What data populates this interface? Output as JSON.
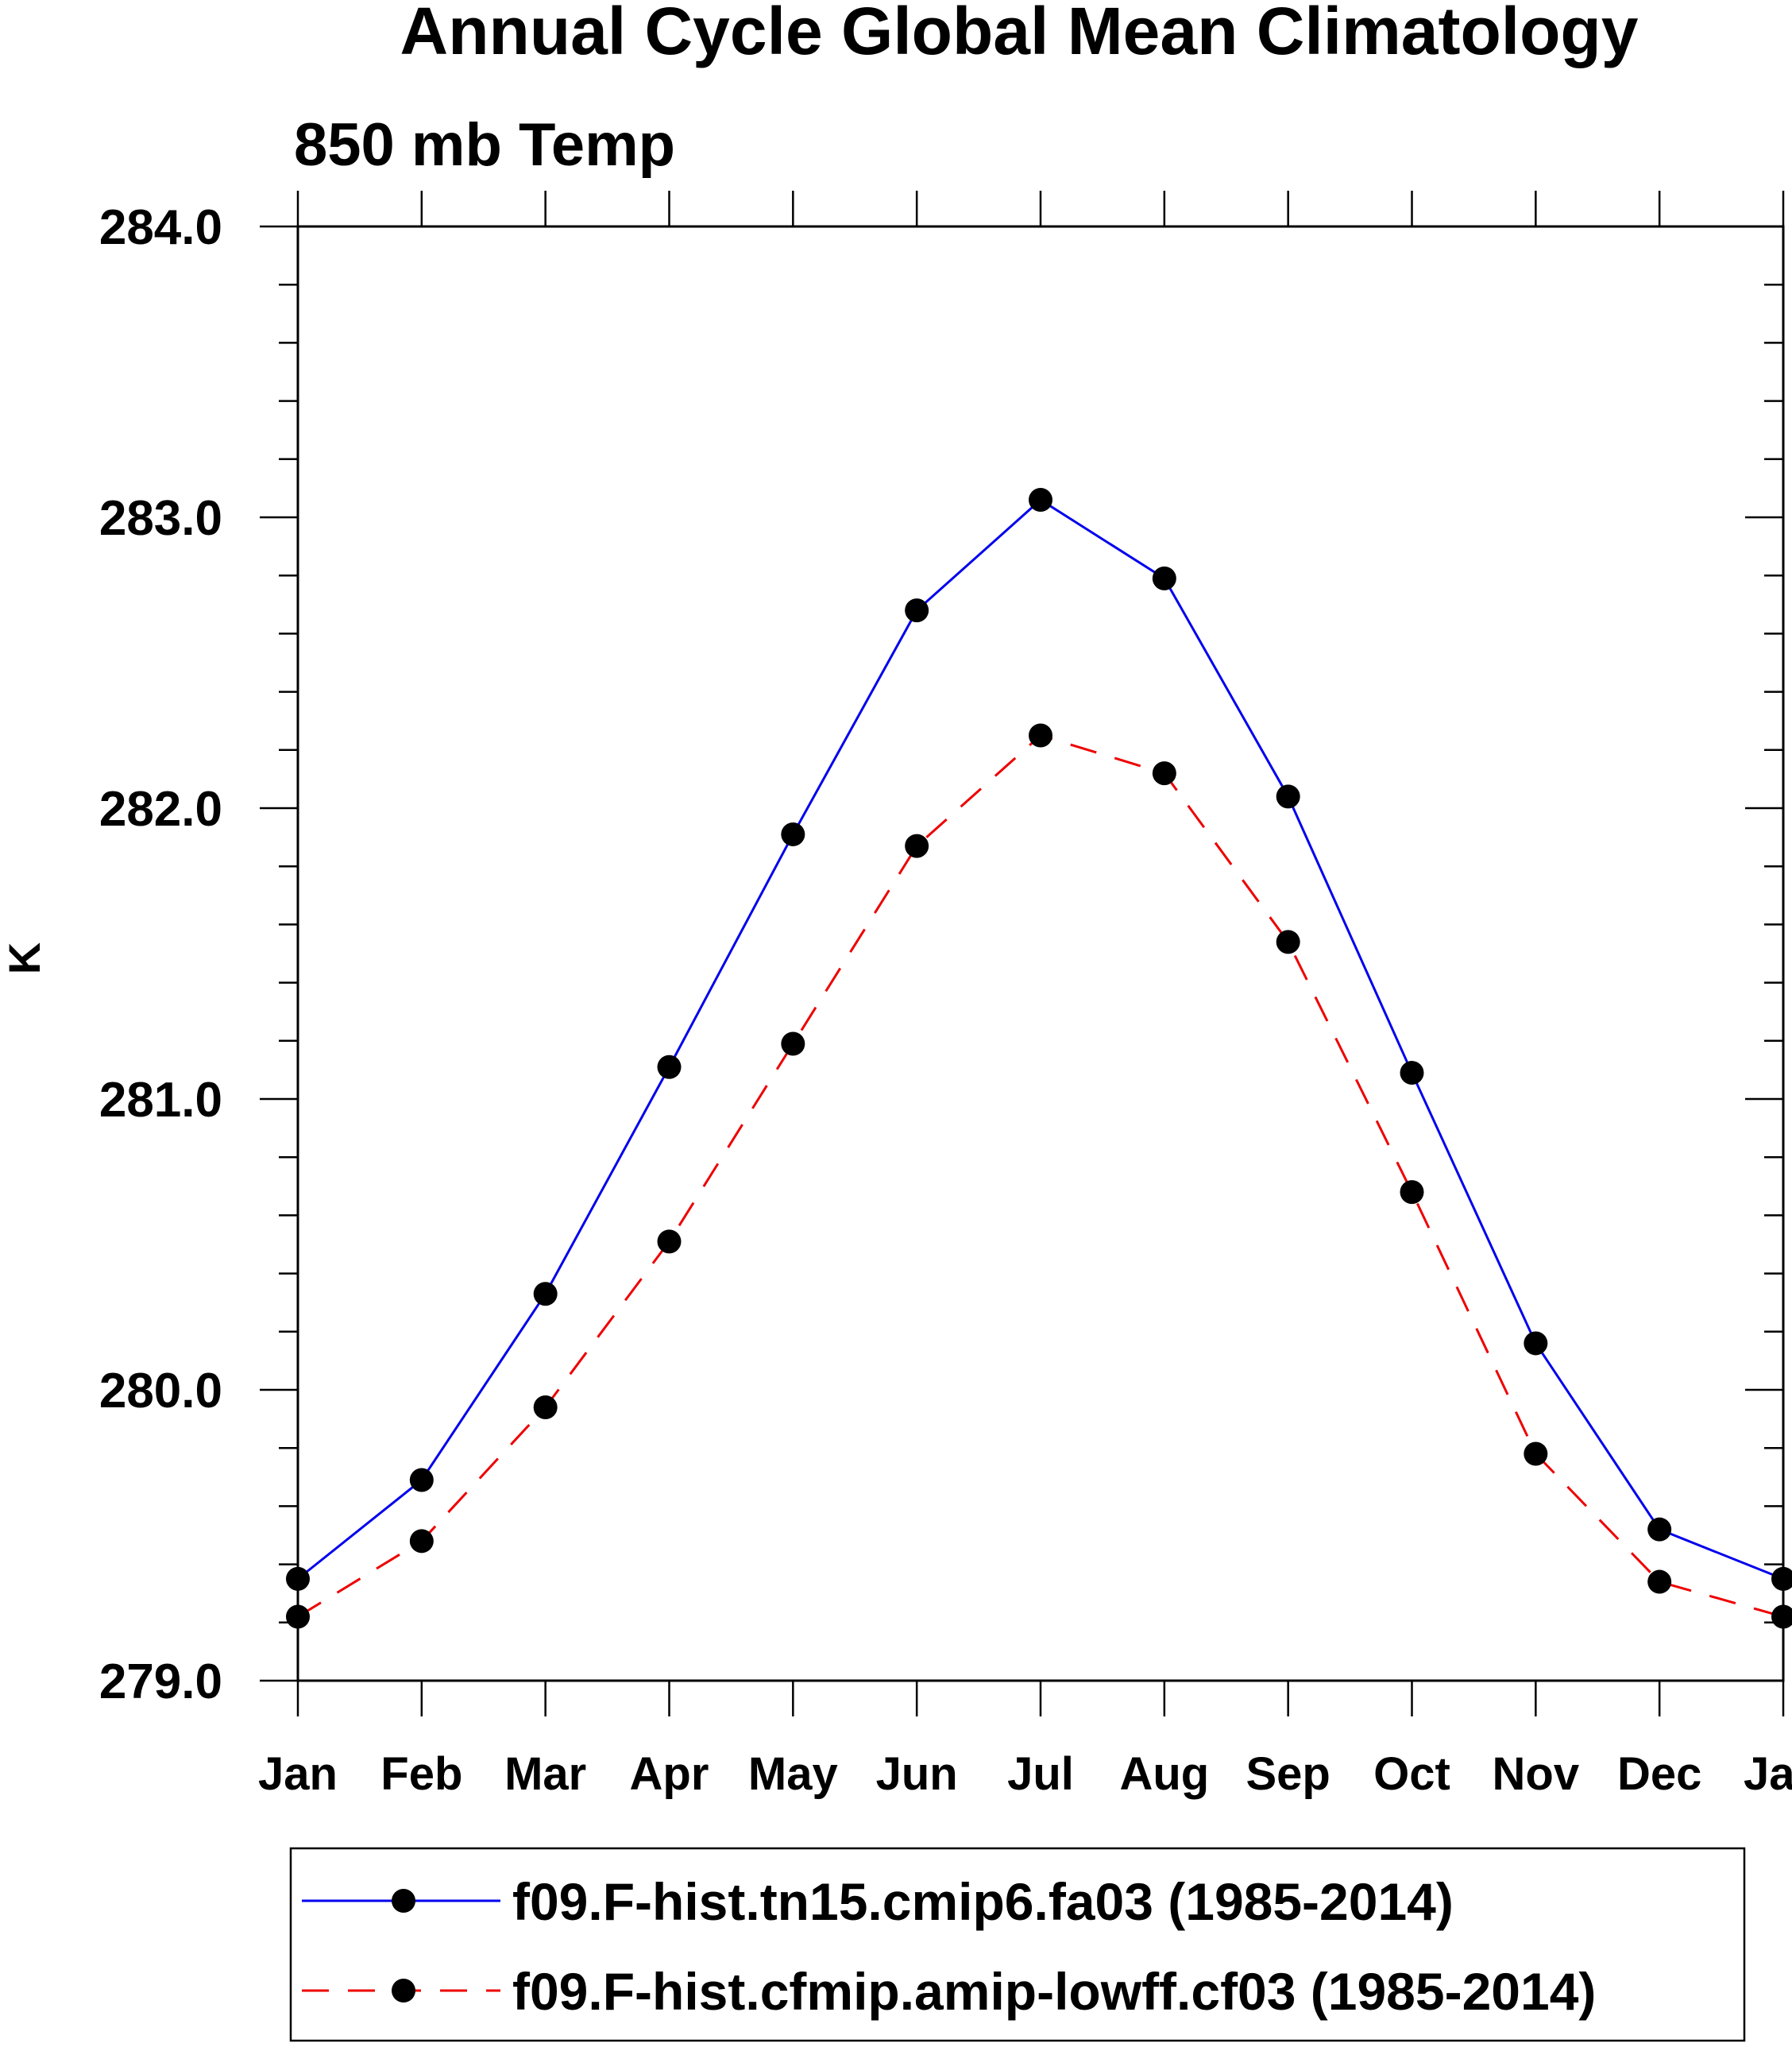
{
  "chart_data": {
    "type": "line",
    "title": "Annual Cycle Global Mean Climatology",
    "subtitle": "850 mb Temp",
    "xlabel": "",
    "ylabel": "K",
    "categories": [
      "Jan",
      "Feb",
      "Mar",
      "Apr",
      "May",
      "Jun",
      "Jul",
      "Aug",
      "Sep",
      "Oct",
      "Nov",
      "Dec",
      "Jan"
    ],
    "ylim": [
      279.0,
      284.0
    ],
    "yticks": [
      "279.0",
      "280.0",
      "281.0",
      "282.0",
      "283.0",
      "284.0"
    ],
    "grid": false,
    "legend_position": "bottom",
    "series": [
      {
        "name": "f09.F-hist.tn15.cmip6.fa03 (1985-2014)",
        "color": "#0000ee",
        "line_style": "solid",
        "values": [
          279.35,
          279.69,
          280.33,
          281.11,
          281.91,
          282.68,
          283.06,
          282.79,
          282.04,
          281.09,
          280.16,
          279.52,
          279.35
        ]
      },
      {
        "name": "f09.F-hist.cfmip.amip-lowff.cf03 (1985-2014)",
        "color": "#ee0000",
        "line_style": "dashed",
        "values": [
          279.22,
          279.48,
          279.94,
          280.51,
          281.19,
          281.87,
          282.25,
          282.12,
          281.54,
          280.68,
          279.78,
          279.34,
          279.22
        ]
      }
    ]
  }
}
